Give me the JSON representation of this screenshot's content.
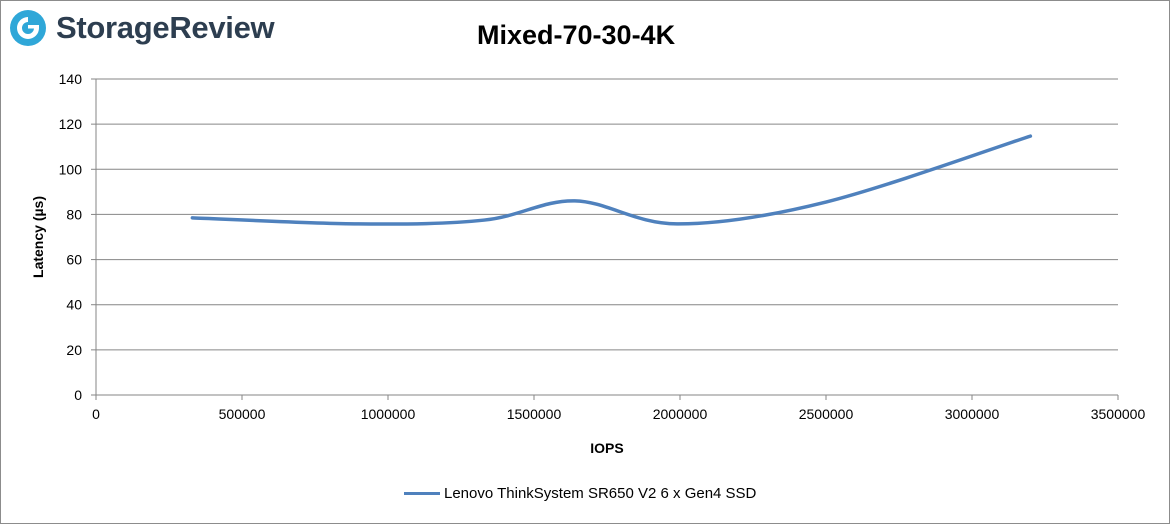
{
  "brand": {
    "name": "StorageReview"
  },
  "chart_data": {
    "type": "line",
    "title": "Mixed-70-30-4K",
    "xlabel": "IOPS",
    "ylabel": "Latency (µs)",
    "xlim": [
      0,
      3500000
    ],
    "ylim": [
      0,
      140
    ],
    "xticks": [
      0,
      500000,
      1000000,
      1500000,
      2000000,
      2500000,
      3000000,
      3500000
    ],
    "yticks": [
      0,
      20,
      40,
      60,
      80,
      100,
      120,
      140
    ],
    "grid": "horizontal",
    "legend_position": "bottom",
    "series": [
      {
        "name": "Lenovo ThinkSystem SR650 V2 6 x Gen4 SSD",
        "color": "#4f81bd",
        "x": [
          330000,
          900000,
          1330000,
          1640000,
          1990000,
          2500000,
          3200000
        ],
        "y": [
          78.5,
          75.8,
          77.5,
          86,
          75.8,
          85.5,
          114.7
        ]
      }
    ]
  }
}
